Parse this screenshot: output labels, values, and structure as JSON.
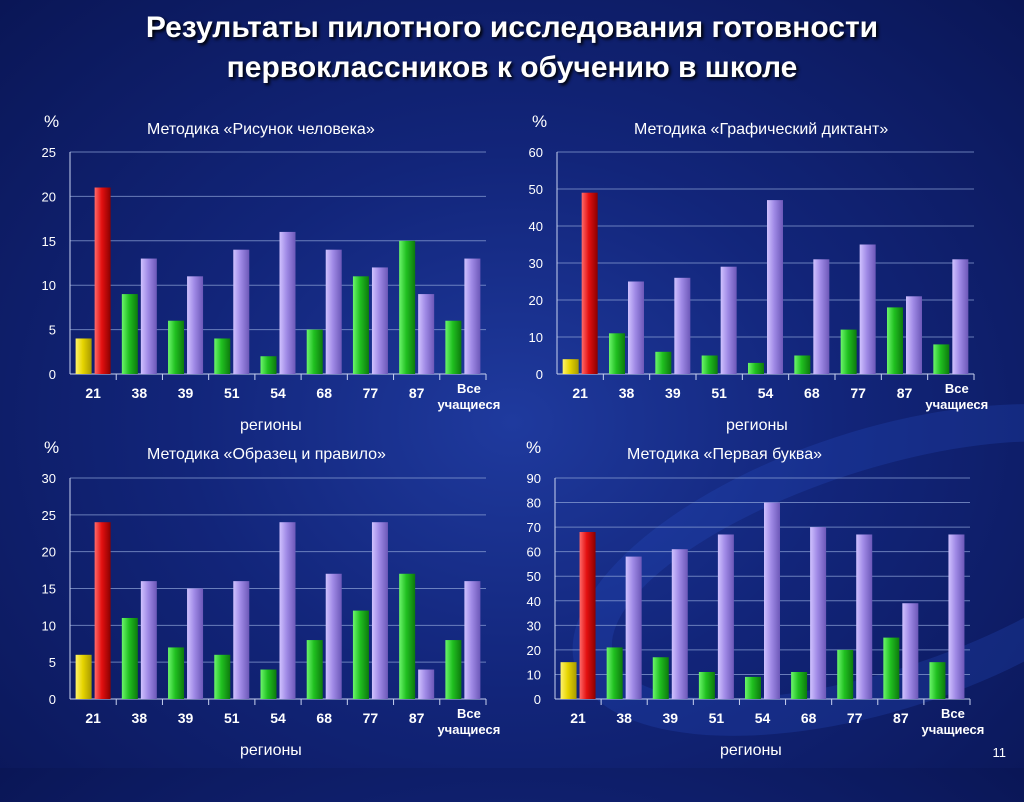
{
  "title": {
    "line1": "Результаты  пилотного исследования готовности",
    "line2": "первоклассников к обучению в школе"
  },
  "page_number": "11",
  "colors": {
    "yellow": "#f0e000",
    "red": "#ee1111",
    "green": "#22cc22",
    "purple": "#a58ce8"
  },
  "chart_data": [
    {
      "type": "bar",
      "title": "Методика «Рисунок человека»",
      "ylabel": "%",
      "xlabel": "регионы",
      "ylim": [
        0,
        25
      ],
      "yticks": [
        0,
        5,
        10,
        15,
        20,
        25
      ],
      "categories": [
        "21",
        "38",
        "39",
        "51",
        "54",
        "68",
        "77",
        "87",
        "Все учащиеся"
      ],
      "series": [
        {
          "values": [
            4,
            9,
            6,
            4,
            2,
            5,
            11,
            15,
            6
          ]
        },
        {
          "values": [
            21,
            13,
            11,
            14,
            16,
            14,
            12,
            9,
            13
          ]
        }
      ]
    },
    {
      "type": "bar",
      "title": "Методика «Графический диктант»",
      "ylabel": "%",
      "xlabel": "регионы",
      "ylim": [
        0,
        60
      ],
      "yticks": [
        0,
        10,
        20,
        30,
        40,
        50,
        60
      ],
      "categories": [
        "21",
        "38",
        "39",
        "51",
        "54",
        "68",
        "77",
        "87",
        "Все учащиеся"
      ],
      "series": [
        {
          "values": [
            4,
            11,
            6,
            5,
            3,
            5,
            12,
            18,
            8
          ]
        },
        {
          "values": [
            49,
            25,
            26,
            29,
            47,
            31,
            35,
            21,
            31
          ]
        }
      ]
    },
    {
      "type": "bar",
      "title": "Методика «Образец и правило»",
      "ylabel": "%",
      "xlabel": "регионы",
      "ylim": [
        0,
        30
      ],
      "yticks": [
        0,
        5,
        10,
        15,
        20,
        25,
        30
      ],
      "categories": [
        "21",
        "38",
        "39",
        "51",
        "54",
        "68",
        "77",
        "87",
        "Все учащиеся"
      ],
      "series": [
        {
          "values": [
            6,
            11,
            7,
            6,
            4,
            8,
            12,
            17,
            8
          ]
        },
        {
          "values": [
            24,
            16,
            15,
            16,
            24,
            17,
            24,
            4,
            16
          ]
        }
      ]
    },
    {
      "type": "bar",
      "title": "Методика «Первая буква»",
      "ylabel": "%",
      "xlabel": "регионы",
      "ylim": [
        0,
        90
      ],
      "yticks": [
        0,
        10,
        20,
        30,
        40,
        50,
        60,
        70,
        80,
        90
      ],
      "categories": [
        "21",
        "38",
        "39",
        "51",
        "54",
        "68",
        "77",
        "87",
        "Все учащиеся"
      ],
      "series": [
        {
          "values": [
            15,
            21,
            17,
            11,
            9,
            11,
            20,
            25,
            15
          ]
        },
        {
          "values": [
            68,
            58,
            61,
            67,
            80,
            70,
            67,
            39,
            67
          ]
        }
      ]
    }
  ]
}
